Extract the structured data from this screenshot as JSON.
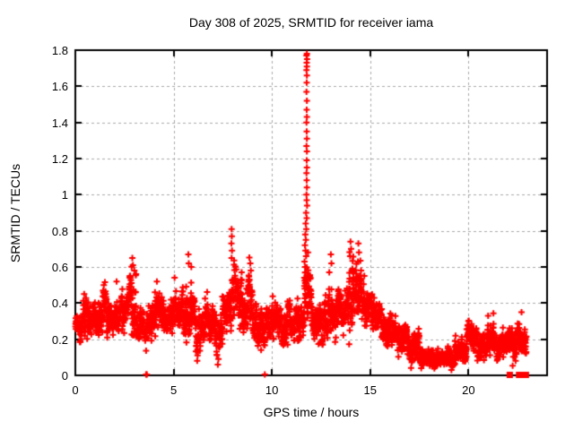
{
  "figure": {
    "title": "Day 308 of 2025, SRMTID for receiver iama",
    "xlabel": "GPS time / hours",
    "ylabel": "SRMTID / TECUs"
  },
  "chart_data": {
    "type": "scatter",
    "title": "Day 308 of 2025, SRMTID for receiver iama",
    "xlabel": "GPS time / hours",
    "ylabel": "SRMTID / TECUs",
    "xlim": [
      0,
      24
    ],
    "ylim": [
      0,
      1.8
    ],
    "xticks": [
      {
        "v": 0,
        "label": "0"
      },
      {
        "v": 5,
        "label": "5"
      },
      {
        "v": 10,
        "label": "10"
      },
      {
        "v": 15,
        "label": "15"
      },
      {
        "v": 20,
        "label": "20"
      }
    ],
    "yticks": [
      {
        "v": 0,
        "label": "0"
      },
      {
        "v": 0.2,
        "label": "0.2"
      },
      {
        "v": 0.4,
        "label": "0.4"
      },
      {
        "v": 0.6,
        "label": "0.6"
      },
      {
        "v": 0.8,
        "label": "0.8"
      },
      {
        "v": 1.0,
        "label": "1"
      },
      {
        "v": 1.2,
        "label": "1.2"
      },
      {
        "v": 1.4,
        "label": "1.4"
      },
      {
        "v": 1.6,
        "label": "1.6"
      },
      {
        "v": 1.8,
        "label": "1.8"
      }
    ],
    "grid": "dashed-major",
    "grid_color": "#a8a8a8",
    "axis_color": "#000000",
    "marker": {
      "shape": "plus",
      "color": "#ff0000",
      "size": 7
    },
    "series_name": "SRMTID",
    "data_start_hour": 0.0,
    "data_end_hour": 22.95,
    "sample_interval_hours": 0.01,
    "band_segments": [
      [
        0.0,
        0.3,
        0.26,
        0.07
      ],
      [
        0.3,
        0.8,
        0.32,
        0.11
      ],
      [
        0.8,
        1.3,
        0.3,
        0.09
      ],
      [
        1.3,
        1.7,
        0.34,
        0.12
      ],
      [
        1.7,
        2.3,
        0.3,
        0.1
      ],
      [
        2.3,
        2.7,
        0.33,
        0.12
      ],
      [
        2.7,
        3.1,
        0.38,
        0.17
      ],
      [
        3.1,
        3.6,
        0.29,
        0.09
      ],
      [
        3.6,
        4.0,
        0.3,
        0.11
      ],
      [
        4.0,
        4.4,
        0.33,
        0.12
      ],
      [
        4.4,
        4.9,
        0.3,
        0.09
      ],
      [
        4.9,
        5.4,
        0.34,
        0.11
      ],
      [
        5.4,
        5.9,
        0.36,
        0.15
      ],
      [
        5.9,
        6.4,
        0.27,
        0.14
      ],
      [
        6.4,
        7.0,
        0.31,
        0.11
      ],
      [
        7.0,
        7.5,
        0.24,
        0.12
      ],
      [
        7.5,
        7.9,
        0.33,
        0.1
      ],
      [
        7.9,
        8.2,
        0.48,
        0.22
      ],
      [
        8.2,
        8.7,
        0.4,
        0.13
      ],
      [
        8.7,
        9.2,
        0.38,
        0.16
      ],
      [
        9.2,
        9.8,
        0.28,
        0.11
      ],
      [
        9.8,
        10.5,
        0.3,
        0.09
      ],
      [
        10.5,
        11.1,
        0.28,
        0.1
      ],
      [
        11.1,
        11.5,
        0.31,
        0.12
      ],
      [
        11.5,
        11.65,
        0.28,
        0.08
      ],
      [
        11.65,
        12.0,
        0.45,
        0.22
      ],
      [
        12.0,
        12.5,
        0.33,
        0.11
      ],
      [
        12.5,
        12.9,
        0.3,
        0.12
      ],
      [
        12.9,
        13.4,
        0.36,
        0.13
      ],
      [
        13.4,
        13.8,
        0.34,
        0.11
      ],
      [
        13.8,
        14.2,
        0.45,
        0.18
      ],
      [
        14.2,
        14.6,
        0.42,
        0.16
      ],
      [
        14.6,
        15.1,
        0.38,
        0.11
      ],
      [
        15.1,
        15.7,
        0.31,
        0.09
      ],
      [
        15.7,
        16.3,
        0.26,
        0.09
      ],
      [
        16.3,
        16.9,
        0.21,
        0.08
      ],
      [
        16.9,
        17.5,
        0.15,
        0.07
      ],
      [
        17.5,
        18.3,
        0.11,
        0.05
      ],
      [
        18.3,
        19.3,
        0.09,
        0.04
      ],
      [
        19.3,
        19.9,
        0.13,
        0.06
      ],
      [
        19.9,
        20.4,
        0.19,
        0.08
      ],
      [
        20.4,
        20.9,
        0.15,
        0.07
      ],
      [
        20.9,
        21.3,
        0.2,
        0.09
      ],
      [
        21.3,
        21.9,
        0.15,
        0.07
      ],
      [
        21.9,
        22.5,
        0.17,
        0.08
      ],
      [
        22.5,
        22.95,
        0.19,
        0.09
      ]
    ],
    "spike_points": [
      [
        11.78,
        1.78
      ],
      [
        11.76,
        1.77
      ],
      [
        11.79,
        1.75
      ],
      [
        11.77,
        1.73
      ],
      [
        11.78,
        1.71
      ],
      [
        11.76,
        1.69
      ],
      [
        11.78,
        1.66
      ],
      [
        11.77,
        1.62
      ],
      [
        11.76,
        1.57
      ],
      [
        11.78,
        1.52
      ],
      [
        11.77,
        1.47
      ],
      [
        11.78,
        1.43
      ],
      [
        11.76,
        1.4
      ],
      [
        11.77,
        1.35
      ],
      [
        11.78,
        1.31
      ],
      [
        11.76,
        1.27
      ],
      [
        11.78,
        1.24
      ],
      [
        11.77,
        1.19
      ],
      [
        11.78,
        1.15
      ],
      [
        11.76,
        1.12
      ],
      [
        11.77,
        1.08
      ],
      [
        11.78,
        1.04
      ],
      [
        11.76,
        1.0
      ],
      [
        11.77,
        0.97
      ],
      [
        11.79,
        0.94
      ],
      [
        11.74,
        0.9
      ],
      [
        11.77,
        0.87
      ],
      [
        11.72,
        0.84
      ],
      [
        11.75,
        0.81
      ],
      [
        11.7,
        0.78
      ],
      [
        11.73,
        0.75
      ],
      [
        11.68,
        0.72
      ],
      [
        11.71,
        0.69
      ],
      [
        11.74,
        0.66
      ],
      [
        11.66,
        0.63
      ],
      [
        11.69,
        0.6
      ],
      [
        11.72,
        0.57
      ],
      [
        11.65,
        0.54
      ],
      [
        11.7,
        0.51
      ],
      [
        11.67,
        0.48
      ]
    ],
    "outlier_points": [
      [
        0.45,
        0.45
      ],
      [
        1.45,
        0.5
      ],
      [
        2.1,
        0.52
      ],
      [
        2.9,
        0.65
      ],
      [
        2.93,
        0.61
      ],
      [
        3.0,
        0.58
      ],
      [
        4.15,
        0.52
      ],
      [
        5.05,
        0.54
      ],
      [
        5.75,
        0.67
      ],
      [
        5.77,
        0.62
      ],
      [
        5.9,
        0.6
      ],
      [
        6.2,
        0.08
      ],
      [
        6.22,
        0.11
      ],
      [
        7.25,
        0.06
      ],
      [
        7.28,
        0.09
      ],
      [
        7.95,
        0.81
      ],
      [
        7.96,
        0.77
      ],
      [
        7.94,
        0.73
      ],
      [
        7.97,
        0.69
      ],
      [
        7.95,
        0.65
      ],
      [
        8.9,
        0.62
      ],
      [
        8.93,
        0.58
      ],
      [
        9.45,
        0.14
      ],
      [
        10.8,
        0.17
      ],
      [
        12.45,
        0.18
      ],
      [
        12.92,
        0.57
      ],
      [
        13.0,
        0.67
      ],
      [
        13.03,
        0.62
      ],
      [
        14.0,
        0.74
      ],
      [
        14.03,
        0.7
      ],
      [
        13.98,
        0.66
      ],
      [
        14.4,
        0.73
      ],
      [
        14.43,
        0.68
      ],
      [
        14.38,
        0.63
      ],
      [
        14.7,
        0.55
      ],
      [
        20.0,
        0.3
      ],
      [
        21.0,
        0.33
      ],
      [
        22.4,
        0.08
      ],
      [
        22.7,
        0.35
      ]
    ],
    "zero_plus_points": [
      [
        3.6,
        0
      ],
      [
        3.64,
        0
      ],
      [
        9.64,
        0
      ]
    ],
    "zero_square_points": [
      [
        22.08,
        0
      ],
      [
        22.55,
        0
      ],
      [
        22.6,
        0
      ],
      [
        22.64,
        0
      ],
      [
        22.7,
        0
      ],
      [
        22.74,
        0
      ],
      [
        22.9,
        0
      ]
    ]
  }
}
